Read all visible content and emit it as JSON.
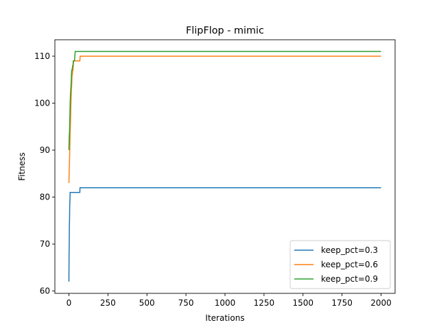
{
  "chart_data": {
    "type": "line",
    "title": "FlipFlop - mimic",
    "xlabel": "Iterations",
    "ylabel": "Fitness",
    "xlim": [
      -90,
      2090
    ],
    "ylim": [
      59.5,
      113.5
    ],
    "xticks": [
      0,
      250,
      500,
      750,
      1000,
      1250,
      1500,
      1750,
      2000
    ],
    "yticks": [
      60,
      70,
      80,
      90,
      100,
      110
    ],
    "grid": false,
    "legend": {
      "placement": "lower-right"
    },
    "series": [
      {
        "name": "keep_pct=0.3",
        "color": "#1f77b4",
        "x": [
          0,
          1,
          2,
          3,
          4,
          5,
          6,
          7,
          8,
          9,
          10,
          70,
          71,
          2000
        ],
        "y": [
          62,
          68,
          70,
          74,
          75,
          78,
          79,
          80,
          81,
          81,
          81,
          81,
          82,
          82
        ]
      },
      {
        "name": "keep_pct=0.6",
        "color": "#ff7f0e",
        "x": [
          0,
          2,
          4,
          6,
          8,
          10,
          12,
          14,
          16,
          18,
          20,
          22,
          24,
          26,
          28,
          30,
          32,
          34,
          36,
          38,
          40,
          70,
          72,
          2000
        ],
        "y": [
          83,
          86,
          88,
          91,
          94,
          96,
          99,
          101,
          103,
          104,
          106,
          106,
          107,
          107,
          108,
          109,
          109,
          109,
          109,
          109,
          109,
          109,
          110,
          110
        ]
      },
      {
        "name": "keep_pct=0.9",
        "color": "#2ca02c",
        "x": [
          0,
          2,
          4,
          6,
          8,
          10,
          12,
          14,
          16,
          18,
          20,
          24,
          26,
          28,
          30,
          32,
          36,
          38,
          40,
          2000
        ],
        "y": [
          90,
          93,
          94,
          97,
          100,
          102,
          103,
          104,
          106,
          107,
          107,
          108,
          108,
          109,
          109,
          109,
          109,
          110,
          111,
          111
        ]
      }
    ]
  }
}
